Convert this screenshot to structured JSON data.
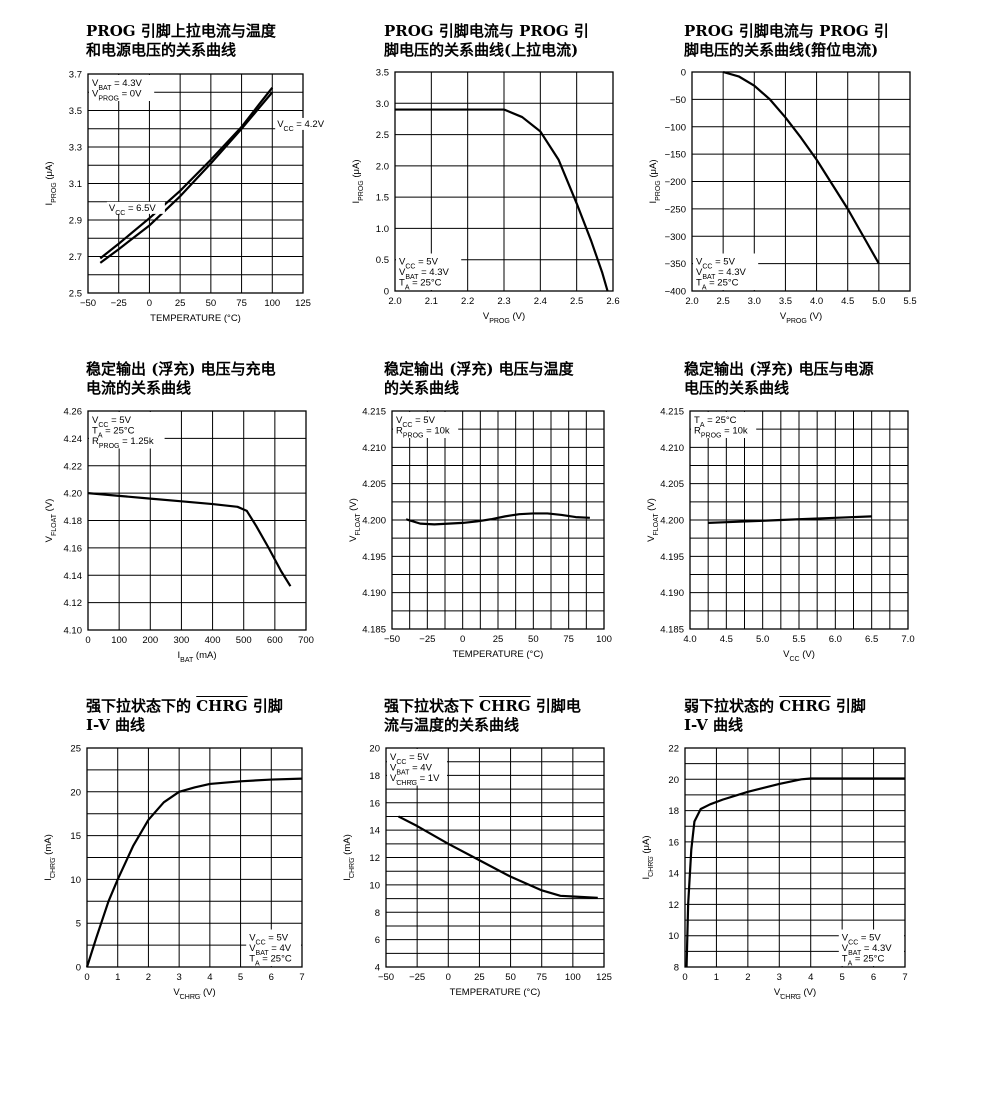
{
  "charts": [
    {
      "title": [
        "PROG 引脚上拉电流与温度",
        "和电源电压的关系曲线"
      ],
      "ylabel": "I_PROG (μA)",
      "xlabel": "TEMPERATURE (°C)",
      "xlim": [
        -50,
        125
      ],
      "ylim": [
        2.5,
        3.7
      ],
      "xticks": [
        "-50",
        "-25",
        "0",
        "25",
        "50",
        "75",
        "100",
        "125"
      ],
      "xtickvals": [
        -50,
        -25,
        0,
        25,
        50,
        75,
        100,
        125
      ],
      "yticks": [
        "2.5",
        "2.7",
        "2.9",
        "3.1",
        "3.3",
        "3.5",
        "3.7"
      ],
      "ytickvals": [
        2.5,
        2.7,
        2.9,
        3.1,
        3.3,
        3.5,
        3.7
      ],
      "xgrid": [
        -50,
        -25,
        0,
        25,
        50,
        75,
        100,
        125
      ],
      "ygrid": [
        2.5,
        2.6,
        2.7,
        2.8,
        2.9,
        3.0,
        3.1,
        3.2,
        3.3,
        3.4,
        3.5,
        3.6,
        3.7
      ],
      "notes": [
        {
          "lines": [
            "V_BAT = 4.3V",
            "V_PROG = 0V"
          ],
          "pos": "top-left"
        }
      ],
      "labels": [
        {
          "text": "V_CC = 4.2V",
          "x": 104,
          "y": 3.41
        },
        {
          "text": "V_CC = 6.5V",
          "x": -33,
          "y": 2.95
        }
      ],
      "series": [
        {
          "name": "V_CC = 4.2V",
          "x": [
            -40,
            -25,
            0,
            25,
            50,
            75,
            90,
            100
          ],
          "y": [
            2.665,
            2.74,
            2.87,
            3.03,
            3.21,
            3.4,
            3.52,
            3.6
          ]
        },
        {
          "name": "V_CC = 6.5V",
          "x": [
            -40,
            -25,
            0,
            25,
            50,
            75,
            90,
            100
          ],
          "y": [
            2.69,
            2.77,
            2.91,
            3.06,
            3.23,
            3.41,
            3.54,
            3.625
          ]
        }
      ]
    },
    {
      "title": [
        "PROG 引脚电流与 PROG 引",
        "脚电压的关系曲线(上拉电流)"
      ],
      "ylabel": "I_PROG (μA)",
      "xlabel": "V_PROG (V)",
      "xlim": [
        2.0,
        2.6
      ],
      "ylim": [
        0,
        3.5
      ],
      "xticks": [
        "2.0",
        "2.1",
        "2.2",
        "2.3",
        "2.4",
        "2.5",
        "2.6"
      ],
      "xtickvals": [
        2.0,
        2.1,
        2.2,
        2.3,
        2.4,
        2.5,
        2.6
      ],
      "yticks": [
        "0",
        "0.5",
        "1.0",
        "1.5",
        "2.0",
        "2.5",
        "3.0",
        "3.5"
      ],
      "ytickvals": [
        0,
        0.5,
        1.0,
        1.5,
        2.0,
        2.5,
        3.0,
        3.5
      ],
      "xgrid": [
        2.0,
        2.1,
        2.2,
        2.3,
        2.4,
        2.5,
        2.6
      ],
      "ygrid": [
        0,
        0.5,
        1.0,
        1.5,
        2.0,
        2.5,
        3.0,
        3.5
      ],
      "notes": [
        {
          "lines": [
            "V_CC = 5V",
            "V_BAT = 4.3V",
            "T_A = 25°C"
          ],
          "pos": "bottom-left"
        }
      ],
      "labels": [],
      "series": [
        {
          "name": "",
          "x": [
            2.0,
            2.1,
            2.2,
            2.3,
            2.35,
            2.4,
            2.45,
            2.5,
            2.54,
            2.57,
            2.585
          ],
          "y": [
            2.9,
            2.9,
            2.9,
            2.9,
            2.78,
            2.55,
            2.1,
            1.4,
            0.8,
            0.3,
            0.0
          ]
        }
      ]
    },
    {
      "title": [
        "PROG 引脚电流与 PROG 引",
        "脚电压的关系曲线(箝位电流)"
      ],
      "ylabel": "I_PROG (μA)",
      "xlabel": "V_PROG (V)",
      "xlim": [
        2.0,
        5.5
      ],
      "ylim": [
        -400,
        0
      ],
      "xticks": [
        "2.0",
        "2.5",
        "3.0",
        "3.5",
        "4.0",
        "4.5",
        "5.0",
        "5.5"
      ],
      "xtickvals": [
        2.0,
        2.5,
        3.0,
        3.5,
        4.0,
        4.5,
        5.0,
        5.5
      ],
      "yticks": [
        "-400",
        "-350",
        "-300",
        "-250",
        "-200",
        "-150",
        "-100",
        "-50",
        "0"
      ],
      "ytickvals": [
        -400,
        -350,
        -300,
        -250,
        -200,
        -150,
        -100,
        -50,
        0
      ],
      "xgrid": [
        2.0,
        2.5,
        3.0,
        3.5,
        4.0,
        4.5,
        5.0,
        5.5
      ],
      "ygrid": [
        -400,
        -350,
        -300,
        -250,
        -200,
        -150,
        -100,
        -50,
        0
      ],
      "notes": [
        {
          "lines": [
            "V_CC = 5V",
            "V_BAT = 4.3V",
            "T_A = 25°C"
          ],
          "pos": "bottom-left"
        }
      ],
      "labels": [],
      "series": [
        {
          "name": "",
          "x": [
            2.5,
            2.75,
            3.0,
            3.25,
            3.5,
            3.75,
            4.0,
            4.25,
            4.5,
            4.75,
            5.0
          ],
          "y": [
            0,
            -8,
            -25,
            -50,
            -83,
            -120,
            -160,
            -205,
            -250,
            -300,
            -350
          ]
        }
      ]
    },
    {
      "title": [
        "稳定输出 (浮充) 电压与充电",
        "电流的关系曲线"
      ],
      "ylabel": "V_FLOAT (V)",
      "xlabel": "I_BAT (mA)",
      "xlim": [
        0,
        700
      ],
      "ylim": [
        4.1,
        4.26
      ],
      "xticks": [
        "0",
        "100",
        "200",
        "300",
        "400",
        "500",
        "600",
        "700"
      ],
      "xtickvals": [
        0,
        100,
        200,
        300,
        400,
        500,
        600,
        700
      ],
      "yticks": [
        "4.10",
        "4.12",
        "4.14",
        "4.16",
        "4.18",
        "4.20",
        "4.22",
        "4.24",
        "4.26"
      ],
      "ytickvals": [
        4.1,
        4.12,
        4.14,
        4.16,
        4.18,
        4.2,
        4.22,
        4.24,
        4.26
      ],
      "xgrid": [
        0,
        100,
        200,
        300,
        400,
        500,
        600,
        700
      ],
      "ygrid": [
        4.1,
        4.12,
        4.14,
        4.16,
        4.18,
        4.2,
        4.22,
        4.24,
        4.26
      ],
      "notes": [
        {
          "lines": [
            "V_CC = 5V",
            "T_A = 25°C",
            "R_PROG = 1.25k"
          ],
          "pos": "top-left"
        }
      ],
      "labels": [],
      "series": [
        {
          "name": "",
          "x": [
            0,
            100,
            200,
            300,
            400,
            480,
            510,
            540,
            580,
            620,
            650
          ],
          "y": [
            4.2,
            4.198,
            4.196,
            4.194,
            4.192,
            4.19,
            4.187,
            4.176,
            4.16,
            4.143,
            4.132
          ]
        }
      ]
    },
    {
      "title": [
        "稳定输出 (浮充) 电压与温度",
        "的关系曲线"
      ],
      "ylabel": "V_FLOAT (V)",
      "xlabel": "TEMPERATURE (°C)",
      "xlim": [
        -50,
        100
      ],
      "ylim": [
        4.185,
        4.215
      ],
      "xticks": [
        "-50",
        "-25",
        "0",
        "25",
        "50",
        "75",
        "100"
      ],
      "xtickvals": [
        -50,
        -25,
        0,
        25,
        50,
        75,
        100
      ],
      "yticks": [
        "4.185",
        "4.190",
        "4.195",
        "4.200",
        "4.205",
        "4.210",
        "4.215"
      ],
      "ytickvals": [
        4.185,
        4.19,
        4.195,
        4.2,
        4.205,
        4.21,
        4.215
      ],
      "xgrid": [
        -50,
        -37.5,
        -25,
        -12.5,
        0,
        12.5,
        25,
        37.5,
        50,
        62.5,
        75,
        87.5,
        100
      ],
      "ygrid": [
        4.185,
        4.1875,
        4.19,
        4.1925,
        4.195,
        4.1975,
        4.2,
        4.2025,
        4.205,
        4.2075,
        4.21,
        4.2125,
        4.215
      ],
      "notes": [
        {
          "lines": [
            "V_CC = 5V",
            "R_PROG = 10k"
          ],
          "pos": "top-left"
        }
      ],
      "labels": [],
      "series": [
        {
          "name": "",
          "x": [
            -40,
            -30,
            -20,
            -10,
            0,
            10,
            20,
            30,
            40,
            50,
            60,
            70,
            80,
            90
          ],
          "y": [
            4.2001,
            4.1995,
            4.1994,
            4.1995,
            4.1996,
            4.1998,
            4.2001,
            4.2005,
            4.2008,
            4.2009,
            4.2009,
            4.2007,
            4.2004,
            4.2003
          ]
        }
      ]
    },
    {
      "title": [
        "稳定输出 (浮充) 电压与电源",
        "电压的关系曲线"
      ],
      "ylabel": "V_FLOAT (V)",
      "xlabel": "V_CC (V)",
      "xlim": [
        4.0,
        7.0
      ],
      "ylim": [
        4.185,
        4.215
      ],
      "xticks": [
        "4.0",
        "4.5",
        "5.0",
        "5.5",
        "6.0",
        "6.5",
        "7.0"
      ],
      "xtickvals": [
        4.0,
        4.5,
        5.0,
        5.5,
        6.0,
        6.5,
        7.0
      ],
      "yticks": [
        "4.185",
        "4.190",
        "4.195",
        "4.200",
        "4.205",
        "4.210",
        "4.215"
      ],
      "ytickvals": [
        4.185,
        4.19,
        4.195,
        4.2,
        4.205,
        4.21,
        4.215
      ],
      "xgrid": [
        4.0,
        4.25,
        4.5,
        4.75,
        5.0,
        5.25,
        5.5,
        5.75,
        6.0,
        6.25,
        6.5,
        6.75,
        7.0
      ],
      "ygrid": [
        4.185,
        4.1875,
        4.19,
        4.1925,
        4.195,
        4.1975,
        4.2,
        4.2025,
        4.205,
        4.2075,
        4.21,
        4.2125,
        4.215
      ],
      "notes": [
        {
          "lines": [
            "T_A = 25°C",
            "R_PROG = 10k"
          ],
          "pos": "top-left"
        }
      ],
      "labels": [],
      "series": [
        {
          "name": "",
          "x": [
            4.25,
            4.5,
            5.0,
            5.5,
            6.0,
            6.5
          ],
          "y": [
            4.1996,
            4.1997,
            4.1999,
            4.2001,
            4.2003,
            4.2005
          ]
        }
      ]
    },
    {
      "title": [
        "强下拉状态下的 CHRG 引脚",
        "I-V 曲线"
      ],
      "overline": "CHRG",
      "ylabel": "I_CHRG (mA)",
      "xlabel": "V_CHRG (V)",
      "xlim": [
        0,
        7
      ],
      "ylim": [
        0,
        25
      ],
      "xticks": [
        "0",
        "1",
        "2",
        "3",
        "4",
        "5",
        "6",
        "7"
      ],
      "xtickvals": [
        0,
        1,
        2,
        3,
        4,
        5,
        6,
        7
      ],
      "yticks": [
        "0",
        "5",
        "10",
        "15",
        "20",
        "25"
      ],
      "ytickvals": [
        0,
        5,
        10,
        15,
        20,
        25
      ],
      "xgrid": [
        0,
        1,
        2,
        3,
        4,
        5,
        6,
        7
      ],
      "ygrid": [
        0,
        2.5,
        5,
        7.5,
        10,
        12.5,
        15,
        17.5,
        20,
        22.5,
        25
      ],
      "notes": [
        {
          "lines": [
            "V_CC = 5V",
            "V_BAT = 4V",
            "T_A = 25°C"
          ],
          "pos": "bottom-right"
        }
      ],
      "labels": [],
      "series": [
        {
          "name": "",
          "x": [
            0,
            0.3,
            0.7,
            1.0,
            1.5,
            2.0,
            2.5,
            3.0,
            3.5,
            4.0,
            5.0,
            6.0,
            7.0
          ],
          "y": [
            0,
            3.3,
            7.5,
            10,
            13.8,
            16.8,
            18.8,
            20.0,
            20.5,
            20.9,
            21.2,
            21.4,
            21.5
          ]
        }
      ]
    },
    {
      "title": [
        "强下拉状态下 CHRG 引脚电",
        "流与温度的关系曲线"
      ],
      "overline": "CHRG",
      "ylabel": "I_CHRG (mA)",
      "xlabel": "TEMPERATURE (°C)",
      "xlim": [
        -50,
        125
      ],
      "ylim": [
        4,
        20
      ],
      "xticks": [
        "-50",
        "-25",
        "0",
        "25",
        "50",
        "75",
        "100",
        "125"
      ],
      "xtickvals": [
        -50,
        -25,
        0,
        25,
        50,
        75,
        100,
        125
      ],
      "yticks": [
        "4",
        "6",
        "8",
        "10",
        "12",
        "14",
        "16",
        "18",
        "20"
      ],
      "ytickvals": [
        4,
        6,
        8,
        10,
        12,
        14,
        16,
        18,
        20
      ],
      "xgrid": [
        -50,
        -25,
        0,
        25,
        50,
        75,
        100,
        125
      ],
      "ygrid": [
        4,
        5,
        6,
        7,
        8,
        9,
        10,
        11,
        12,
        13,
        14,
        15,
        16,
        17,
        18,
        19,
        20
      ],
      "notes": [
        {
          "lines": [
            "V_CC = 5V",
            "V_BAT = 4V",
            "V_CHRG = 1V"
          ],
          "pos": "top-left"
        }
      ],
      "labels": [],
      "series": [
        {
          "name": "",
          "x": [
            -40,
            -25,
            0,
            25,
            50,
            75,
            90,
            100,
            120
          ],
          "y": [
            15.0,
            14.3,
            13.0,
            11.8,
            10.6,
            9.6,
            9.2,
            9.15,
            9.05
          ]
        }
      ]
    },
    {
      "title": [
        "弱下拉状态的 CHRG 引脚",
        "I-V 曲线"
      ],
      "overline": "CHRG",
      "ylabel": "I_CHRG (μA)",
      "xlabel": "V_CHRG (V)",
      "xlim": [
        0,
        7
      ],
      "ylim": [
        8,
        22
      ],
      "xticks": [
        "0",
        "1",
        "2",
        "3",
        "4",
        "5",
        "6",
        "7"
      ],
      "xtickvals": [
        0,
        1,
        2,
        3,
        4,
        5,
        6,
        7
      ],
      "yticks": [
        "8",
        "10",
        "12",
        "14",
        "16",
        "18",
        "20",
        "22"
      ],
      "ytickvals": [
        8,
        10,
        12,
        14,
        16,
        18,
        20,
        22
      ],
      "xgrid": [
        0,
        1,
        2,
        3,
        4,
        5,
        6,
        7
      ],
      "ygrid": [
        8,
        9,
        10,
        11,
        12,
        13,
        14,
        15,
        16,
        17,
        18,
        19,
        20,
        21,
        22
      ],
      "notes": [
        {
          "lines": [
            "V_CC = 5V",
            "V_BAT = 4.3V",
            "T_A = 25°C"
          ],
          "pos": "bottom-right"
        }
      ],
      "labels": [],
      "series": [
        {
          "name": "",
          "x": [
            0.05,
            0.1,
            0.2,
            0.3,
            0.5,
            0.8,
            1.2,
            2.0,
            3.0,
            3.7,
            4.0,
            5.0,
            6.0,
            7.0
          ],
          "y": [
            8,
            12,
            15.5,
            17.3,
            18.1,
            18.4,
            18.7,
            19.2,
            19.7,
            20.0,
            20.05,
            20.05,
            20.05,
            20.05
          ]
        }
      ]
    }
  ]
}
